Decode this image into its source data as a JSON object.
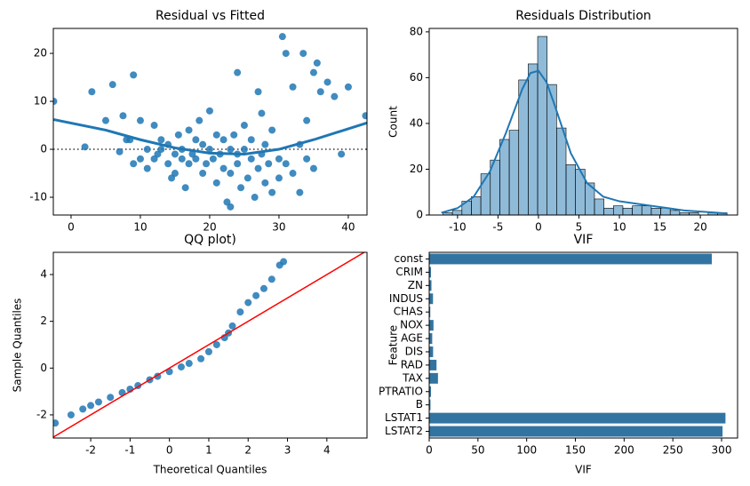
{
  "chart_data": [
    {
      "type": "scatter",
      "title": "Residual vs Fitted",
      "color": "#1f77b4",
      "x": [
        -2.5,
        2,
        3,
        5,
        6,
        7,
        7.5,
        8,
        8.5,
        9,
        9,
        10,
        10,
        11,
        11,
        12,
        12,
        12.5,
        13,
        13,
        14,
        14,
        14.5,
        15,
        15,
        15.5,
        16,
        16,
        16.5,
        17,
        17,
        17.5,
        18,
        18,
        18.5,
        19,
        19,
        19.5,
        20,
        20,
        20.5,
        21,
        21,
        21.5,
        22,
        22,
        22.5,
        23,
        23,
        23.5,
        24,
        24,
        24.5,
        25,
        25,
        25.5,
        26,
        26,
        26.5,
        27,
        27,
        27.5,
        28,
        28,
        28.5,
        29,
        29,
        30,
        30,
        31,
        31,
        32,
        32,
        33,
        33,
        34,
        34,
        35,
        35,
        36,
        37,
        38,
        39,
        40,
        42.5,
        27.5,
        30.5,
        33.5,
        35.5,
        24,
        23
      ],
      "values": [
        10,
        0.5,
        12,
        6,
        13.5,
        -0.5,
        7,
        2,
        2,
        15.5,
        -3,
        6,
        -2,
        0,
        -4,
        5,
        -2,
        -1,
        0,
        2,
        -3,
        1,
        -6,
        -5,
        -1,
        3,
        -2,
        0,
        -8,
        -3,
        4,
        -1,
        -2,
        2,
        6,
        -5,
        1,
        -3,
        0,
        8,
        -2,
        -7,
        3,
        -1,
        -4,
        2,
        -11,
        0,
        -5,
        3,
        -3,
        -1,
        -8,
        0,
        5,
        -6,
        -2,
        2,
        -10,
        -4,
        12,
        -1,
        -7,
        1,
        -3,
        -9,
        4,
        -2,
        -6,
        20,
        -3,
        13,
        -5,
        1,
        -9,
        6,
        -2,
        16,
        -4,
        12,
        14,
        11,
        -1,
        13,
        7,
        7.5,
        23.5,
        20,
        18,
        16,
        -12
      ],
      "trend": {
        "x": [
          -2.5,
          5,
          10,
          15,
          20,
          25,
          30,
          35,
          42.7
        ],
        "values": [
          6.2,
          4,
          2,
          0.3,
          -0.8,
          -1,
          0,
          2,
          5.5
        ]
      },
      "reference_line": 0,
      "xlim": [
        -2.56,
        42.7
      ],
      "ylim": [
        -13.7,
        25.2
      ],
      "xticks": [
        0,
        10,
        20,
        30,
        40
      ],
      "yticks": [
        -10,
        0,
        10,
        20
      ]
    },
    {
      "type": "histogram",
      "title": "Residuals Distribution",
      "y_label": "Count",
      "color": "#1f77b4",
      "bins": [
        -11.8,
        -10.63,
        -9.46,
        -8.29,
        -7.12,
        -5.95,
        -4.78,
        -3.61,
        -2.44,
        -1.27,
        -0.1,
        1.07,
        2.24,
        3.41,
        4.58,
        5.75,
        6.92,
        8.09,
        9.26,
        10.43,
        11.6,
        12.77,
        13.94,
        15.11,
        16.28,
        17.45,
        18.62,
        19.79,
        20.96,
        22.13,
        23.3
      ],
      "values": [
        1,
        2,
        6,
        8,
        18,
        24,
        33,
        37,
        59,
        66,
        78,
        57,
        38,
        22,
        20,
        14,
        7,
        3,
        4,
        3,
        4,
        4,
        3,
        3,
        2,
        1,
        1,
        0,
        1,
        1
      ],
      "kde": {
        "x": [
          -12,
          -10,
          -8,
          -6,
          -4,
          -2,
          -1,
          0,
          1,
          2,
          4,
          6,
          8,
          10,
          12,
          14,
          16,
          18,
          20,
          22,
          23.3
        ],
        "values": [
          1,
          3,
          8,
          19,
          36,
          55,
          62,
          63,
          58,
          48,
          27,
          14,
          8,
          6,
          5,
          4,
          3,
          2,
          1.5,
          1,
          0.7
        ]
      },
      "xlim": [
        -13.5,
        24.6
      ],
      "ylim": [
        0,
        81.5
      ],
      "xticks": [
        -10,
        -5,
        0,
        5,
        10,
        15,
        20
      ],
      "yticks": [
        0,
        20,
        40,
        60,
        80
      ]
    },
    {
      "type": "scatter",
      "title": "QQ plot)",
      "x_label": "Theoretical Quantiles",
      "y_label": "Sample Quantiles",
      "color": "#1f77b4",
      "x": [
        -2.9,
        -2.5,
        -2.2,
        -2,
        -1.8,
        -1.5,
        -1.2,
        -1,
        -0.8,
        -0.5,
        -0.3,
        0,
        0.3,
        0.5,
        0.8,
        1,
        1.2,
        1.4,
        1.5,
        1.6,
        1.8,
        2,
        2.2,
        2.4,
        2.6,
        2.8,
        2.9
      ],
      "values": [
        -2.35,
        -2.0,
        -1.75,
        -1.6,
        -1.45,
        -1.25,
        -1.05,
        -0.9,
        -0.75,
        -0.5,
        -0.35,
        -0.15,
        0.05,
        0.2,
        0.4,
        0.7,
        1.0,
        1.3,
        1.5,
        1.8,
        2.4,
        2.8,
        3.1,
        3.4,
        3.8,
        4.4,
        4.55
      ],
      "trend": {
        "x": [
          -2.95,
          5.02
        ],
        "values": [
          -2.95,
          5.02
        ],
        "color": "#ff0000"
      },
      "xlim": [
        -2.95,
        5.02
      ],
      "ylim": [
        -2.99,
        4.95
      ],
      "xticks": [
        -2,
        -1,
        0,
        1,
        2,
        3,
        4
      ],
      "yticks": [
        -2,
        0,
        2,
        4
      ]
    },
    {
      "type": "hbar",
      "title": "VIF",
      "x_label": "VIF",
      "y_label": "Feature",
      "color": "#3274a1",
      "categories": [
        "const",
        "CRIM",
        "ZN",
        "INDUS",
        "CHAS",
        "NOX",
        "AGE",
        "DIS",
        "RAD",
        "TAX",
        "PTRATIO",
        "B",
        "LSTAT1",
        "LSTAT2"
      ],
      "values": [
        290,
        1.8,
        2.3,
        3.9,
        1.1,
        4.4,
        3.1,
        4.0,
        7.5,
        9.0,
        1.8,
        1.3,
        304,
        301
      ],
      "xlim": [
        0,
        316.4
      ],
      "xticks": [
        0,
        50,
        100,
        150,
        200,
        250,
        300
      ]
    }
  ]
}
